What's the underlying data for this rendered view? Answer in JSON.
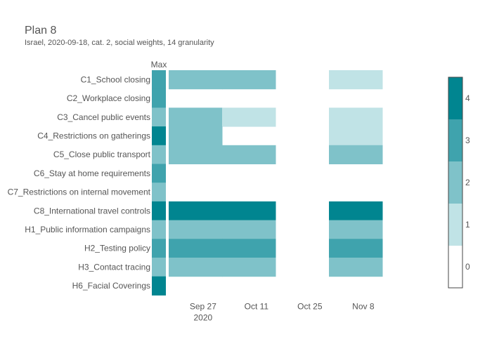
{
  "chart_data": {
    "type": "heatmap",
    "title": "Plan 8",
    "subtitle": "Israel, 2020-09-18, cat. 2, social weights, 14 granularity",
    "max_label": "Max",
    "rows": [
      "C1_School closing",
      "C2_Workplace closing",
      "C3_Cancel public events",
      "C4_Restrictions on gatherings",
      "C5_Close public transport",
      "C6_Stay at home requirements",
      "C7_Restrictions on internal movement",
      "C8_International travel controls",
      "H1_Public information campaigns",
      "H2_Testing policy",
      "H3_Contact tracing",
      "H6_Facial Coverings"
    ],
    "max_values": [
      3,
      3,
      2,
      4,
      2,
      3,
      2,
      4,
      2,
      3,
      2,
      4
    ],
    "periods": [
      "2020-09-18",
      "2020-10-02",
      "2020-10-16",
      "2020-10-30",
      "2020-11-13"
    ],
    "values": [
      [
        2,
        2,
        null,
        1,
        null
      ],
      [
        null,
        null,
        null,
        null,
        null
      ],
      [
        2,
        1,
        null,
        1,
        null
      ],
      [
        2,
        null,
        null,
        1,
        null
      ],
      [
        2,
        2,
        null,
        2,
        null
      ],
      [
        null,
        null,
        null,
        null,
        null
      ],
      [
        null,
        null,
        null,
        null,
        null
      ],
      [
        4,
        4,
        null,
        4,
        null
      ],
      [
        2,
        2,
        null,
        2,
        null
      ],
      [
        3,
        3,
        null,
        3,
        null
      ],
      [
        2,
        2,
        null,
        2,
        null
      ],
      [
        null,
        null,
        null,
        null,
        null
      ]
    ],
    "x_ticks": [
      {
        "date": "2020-09-27",
        "label": "Sep 27",
        "sublabel": "2020"
      },
      {
        "date": "2020-10-11",
        "label": "Oct 11",
        "sublabel": ""
      },
      {
        "date": "2020-10-25",
        "label": "Oct 25",
        "sublabel": ""
      },
      {
        "date": "2020-11-08",
        "label": "Nov 8",
        "sublabel": ""
      }
    ],
    "x_range": [
      "2020-09-18",
      "2020-11-27"
    ],
    "colorscale": {
      "levels": [
        0,
        1,
        2,
        3,
        4
      ],
      "colors": [
        "#ffffff",
        "#c0e3e6",
        "#7fc2c9",
        "#3fa3ad",
        "#018590"
      ]
    },
    "colorbar_ticks": [
      "0",
      "1",
      "2",
      "3",
      "4"
    ],
    "colorbar_position": "right",
    "grid": false
  }
}
